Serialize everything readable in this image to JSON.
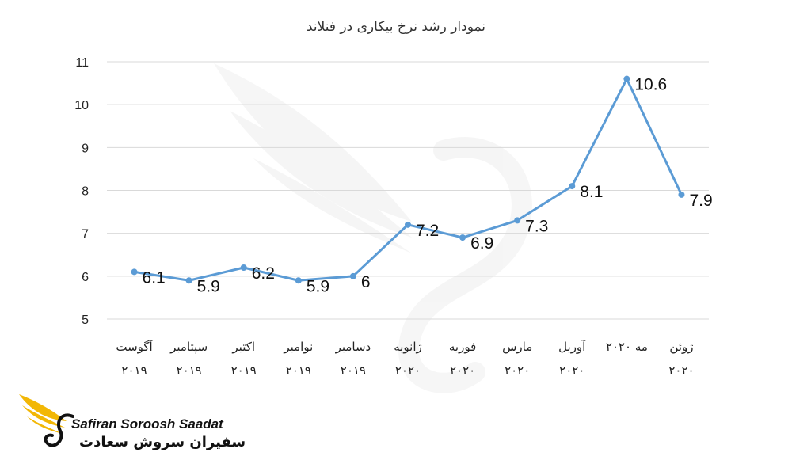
{
  "chart_data": {
    "type": "line",
    "title": "نمودار رشد نرخ بیکاری در فنلاند",
    "xlabel": "",
    "ylabel": "",
    "ylim": [
      5,
      11
    ],
    "yticks": [
      "5",
      "6",
      "7",
      "8",
      "9",
      "10",
      "11"
    ],
    "grid": true,
    "line_color": "#5b9bd5",
    "categories": [
      [
        "آگوست",
        "۲۰۱۹"
      ],
      [
        "سپتامبر",
        "۲۰۱۹"
      ],
      [
        "اکتبر",
        "۲۰۱۹"
      ],
      [
        "نوامبر",
        "۲۰۱۹"
      ],
      [
        "دسامبر",
        "۲۰۱۹"
      ],
      [
        "ژانویه",
        "۲۰۲۰"
      ],
      [
        "فوریه",
        "۲۰۲۰"
      ],
      [
        "مارس",
        "۲۰۲۰"
      ],
      [
        "آوریل",
        "۲۰۲۰"
      ],
      [
        "مه ۲۰۲۰",
        ""
      ],
      [
        "ژوئن",
        "۲۰۲۰"
      ]
    ],
    "series": [
      {
        "values": [
          6.1,
          5.9,
          6.2,
          5.9,
          6,
          7.2,
          6.9,
          7.3,
          8.1,
          10.6,
          7.9
        ],
        "labels": [
          "6.1",
          "5.9",
          "6.2",
          "5.9",
          "6",
          "7.2",
          "6.9",
          "7.3",
          "8.1",
          "10.6",
          "7.9"
        ]
      }
    ]
  },
  "logo": {
    "name_en": "Safiran Soroosh Saadat",
    "name_fa": "سفیران سروش سعادت",
    "accent_color": "#f2b705"
  }
}
